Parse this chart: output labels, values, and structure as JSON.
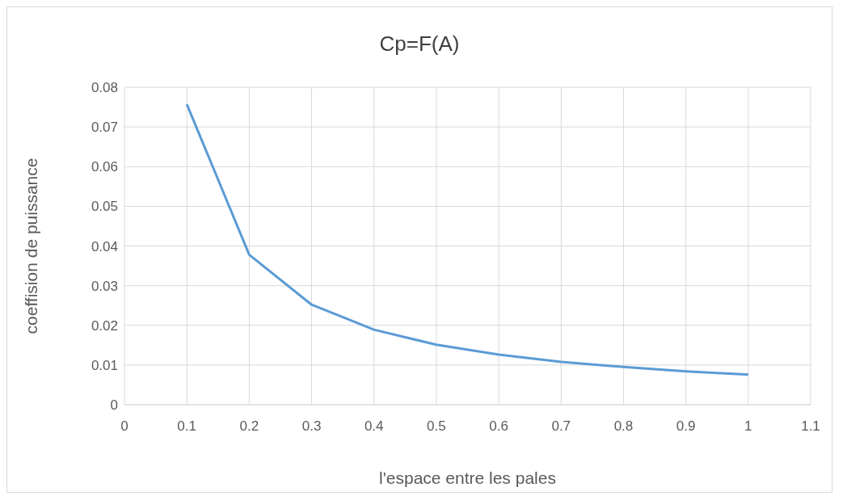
{
  "chart_data": {
    "type": "line",
    "title": "Cp=F(A)",
    "xlabel": "l'espace entre les pales",
    "ylabel": "coeffision de puissance",
    "x": [
      0.1,
      0.2,
      0.3,
      0.4,
      0.5,
      0.6,
      0.7,
      0.8,
      0.9,
      1
    ],
    "series": [
      {
        "color": "#5b9bd5",
        "values": [
          0.0757,
          0.0378,
          0.0252,
          0.0189,
          0.0151,
          0.0126,
          0.0108,
          0.0095,
          0.0084,
          0.0076
        ]
      }
    ],
    "xlim": [
      0,
      1.1
    ],
    "xticks": [
      0,
      0.1,
      0.2,
      0.3,
      0.4,
      0.5,
      0.6,
      0.7,
      0.8,
      0.9,
      1,
      1.1
    ],
    "ylim": [
      0,
      0.08
    ],
    "yticks": [
      0,
      0.01,
      0.02,
      0.03,
      0.04,
      0.05,
      0.06,
      0.07,
      0.08
    ],
    "grid": true,
    "legend": false,
    "marker": "none",
    "line_style": "solid"
  }
}
